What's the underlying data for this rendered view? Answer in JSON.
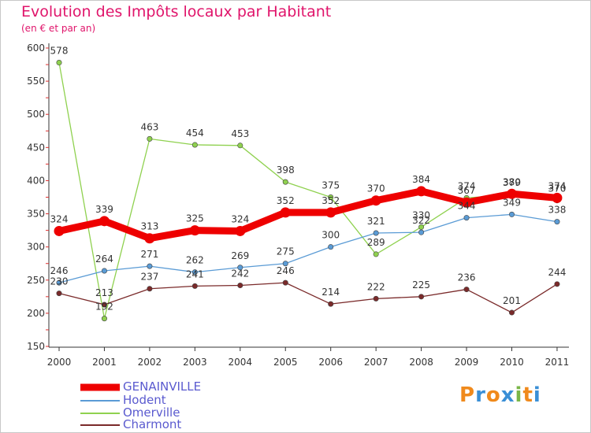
{
  "header": {
    "title": "Evolution des Impôts locaux par Habitant",
    "subtitle": "(en € et par an)"
  },
  "logo": {
    "text": "Proxiti",
    "colors": [
      "#f08a1c",
      "#3a8fd6",
      "#f08a1c",
      "#3a8fd6",
      "#7ab648",
      "#f08a1c",
      "#3a8fd6"
    ]
  },
  "chart_data": {
    "type": "line",
    "title": "Evolution des Impôts locaux par Habitant",
    "subtitle": "(en € et par an)",
    "xlabel": "",
    "ylabel": "",
    "categories": [
      "2000",
      "2001",
      "2002",
      "2003",
      "2004",
      "2005",
      "2006",
      "2007",
      "2008",
      "2009",
      "2010",
      "2011"
    ],
    "ylim": [
      150,
      600
    ],
    "yticks": [
      150,
      200,
      250,
      300,
      350,
      400,
      450,
      500,
      550,
      600
    ],
    "grid": false,
    "legend_position": "bottom-left",
    "series": [
      {
        "name": "GENAINVILLE",
        "color": "#ee0000",
        "values": [
          324,
          339,
          313,
          325,
          324,
          352,
          352,
          370,
          384,
          367,
          380,
          374
        ],
        "labels": [
          "324",
          "339",
          "313",
          "325",
          "324",
          "352",
          "352",
          "370",
          "384",
          "367",
          "380",
          "374"
        ]
      },
      {
        "name": "Hodent",
        "color": "#5a9bd5",
        "values": [
          246,
          264,
          271,
          262,
          269,
          275,
          300,
          321,
          322,
          344,
          349,
          338
        ],
        "labels": [
          "246",
          "264",
          "271",
          "262",
          "269",
          "275",
          "300",
          "321",
          "322",
          "344",
          "349",
          "338"
        ]
      },
      {
        "name": "Omerville",
        "color": "#8fd14f",
        "values": [
          578,
          192,
          463,
          454,
          453,
          398,
          375,
          289,
          330,
          374,
          379,
          370
        ],
        "labels": [
          "578",
          "192",
          "463",
          "454",
          "453",
          "398",
          "375",
          "289",
          "330",
          "374",
          "379",
          "370"
        ]
      },
      {
        "name": "Charmont",
        "color": "#7a2a2a",
        "values": [
          230,
          213,
          237,
          241,
          242,
          246,
          214,
          222,
          225,
          236,
          201,
          244
        ],
        "labels": [
          "230",
          "213",
          "237",
          "241",
          "242",
          "246",
          "214",
          "222",
          "225",
          "236",
          "201",
          "244"
        ]
      }
    ]
  }
}
